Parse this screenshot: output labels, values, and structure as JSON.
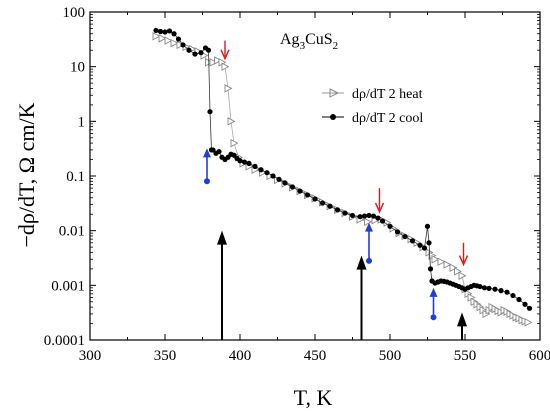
{
  "chart_data": {
    "type": "scatter",
    "title": "",
    "compound_label": {
      "base": "Ag",
      "sub1": "3",
      "mid": "CuS",
      "sub2": "2"
    },
    "xlabel": "T, K",
    "ylabel": "−dρ/dT, Ω cm/K",
    "xlim": [
      300,
      600
    ],
    "ylim": [
      0.0001,
      100
    ],
    "yscale": "log",
    "x_ticks": [
      300,
      350,
      400,
      450,
      500,
      550,
      600
    ],
    "x_tick_labels": [
      "300",
      "350",
      "400",
      "450",
      "500",
      "550",
      "600"
    ],
    "y_ticks": [
      0.0001,
      0.001,
      0.01,
      0.1,
      1,
      10,
      100
    ],
    "y_tick_labels": [
      "0.0001",
      "0.001",
      "0.01",
      "0.1",
      "1",
      "10",
      "100"
    ],
    "grid": false,
    "legend_position": "center-right",
    "series": [
      {
        "name": "dρ/dT 2 heat",
        "marker": "triangle-right-open",
        "color": "#999999",
        "x": [
          344,
          348,
          352,
          356,
          360,
          364,
          368,
          372,
          376,
          379,
          382,
          385,
          388,
          390,
          392,
          394,
          396,
          399,
          402,
          406,
          410,
          415,
          420,
          425,
          430,
          435,
          440,
          445,
          450,
          455,
          460,
          465,
          470,
          475,
          480,
          485,
          490,
          494,
          498,
          502,
          506,
          510,
          514,
          518,
          522,
          526,
          528,
          530,
          534,
          538,
          542,
          545,
          548,
          550,
          552,
          554,
          556,
          558,
          560,
          562,
          564,
          566,
          568,
          570,
          572,
          574,
          576,
          578,
          580,
          582,
          584,
          586,
          588,
          590,
          592
        ],
        "y": [
          36,
          33,
          30,
          27,
          25,
          23,
          21,
          19,
          16,
          12,
          12,
          13,
          12,
          10,
          4,
          1.0,
          0.4,
          0.22,
          0.17,
          0.15,
          0.13,
          0.115,
          0.1,
          0.085,
          0.073,
          0.062,
          0.053,
          0.045,
          0.039,
          0.033,
          0.028,
          0.024,
          0.021,
          0.018,
          0.016,
          0.0145,
          0.0155,
          0.016,
          0.014,
          0.011,
          0.009,
          0.008,
          0.007,
          0.006,
          0.005,
          0.004,
          0.0035,
          0.003,
          0.0027,
          0.0024,
          0.0021,
          0.0018,
          0.0015,
          0.00085,
          0.0007,
          0.0006,
          0.0005,
          0.00045,
          0.0004,
          0.00035,
          0.0003,
          0.00035,
          0.0004,
          0.00037,
          0.00034,
          0.00032,
          0.00035,
          0.00033,
          0.0003,
          0.00028,
          0.00026,
          0.00025,
          0.00023,
          0.00022,
          0.00021
        ]
      },
      {
        "name": "dρ/dT 2 cool",
        "marker": "circle-filled",
        "color": "#000000",
        "x": [
          344,
          347,
          350,
          353,
          356,
          359,
          362,
          366,
          370,
          374,
          377,
          379,
          380,
          381,
          382,
          384,
          386,
          388,
          390,
          392,
          394,
          396,
          398,
          400,
          403,
          406,
          410,
          414,
          418,
          422,
          426,
          430,
          435,
          440,
          445,
          450,
          455,
          460,
          465,
          470,
          475,
          480,
          483,
          486,
          489,
          492,
          495,
          500,
          505,
          510,
          515,
          520,
          523,
          525,
          526,
          527,
          528,
          530,
          532,
          534,
          536,
          538,
          540,
          542,
          544,
          546,
          548,
          550,
          552,
          554,
          556,
          558,
          560,
          563,
          566,
          570,
          574,
          578,
          582,
          586,
          590,
          593
        ],
        "y": [
          46,
          44,
          43,
          45,
          40,
          32,
          25,
          20,
          17,
          18,
          22,
          20,
          1.5,
          0.3,
          0.3,
          0.26,
          0.28,
          0.22,
          0.2,
          0.22,
          0.25,
          0.24,
          0.21,
          0.19,
          0.18,
          0.17,
          0.15,
          0.13,
          0.115,
          0.1,
          0.087,
          0.075,
          0.063,
          0.053,
          0.045,
          0.038,
          0.032,
          0.028,
          0.024,
          0.021,
          0.019,
          0.018,
          0.0185,
          0.019,
          0.0185,
          0.017,
          0.015,
          0.012,
          0.0095,
          0.0078,
          0.0065,
          0.0054,
          0.0048,
          0.012,
          0.006,
          0.002,
          0.0012,
          0.0011,
          0.00115,
          0.0012,
          0.00118,
          0.00115,
          0.0011,
          0.00105,
          0.001,
          0.00095,
          0.0009,
          0.00085,
          0.0009,
          0.00095,
          0.001,
          0.00098,
          0.00095,
          0.0009,
          0.00088,
          0.00085,
          0.0008,
          0.00075,
          0.00065,
          0.00055,
          0.00045,
          0.00038
        ]
      }
    ],
    "annotations": {
      "black_arrows": [
        {
          "x": 388,
          "y_from": 0.0001,
          "y_to": 0.01
        },
        {
          "x": 481,
          "y_from": 0.0001,
          "y_to": 0.0035
        },
        {
          "x": 548,
          "y_from": 0.0001,
          "y_to": 0.00032
        }
      ],
      "blue_arrows": [
        {
          "x": 378,
          "y_dot": 0.08,
          "y_tip": 0.32
        },
        {
          "x": 486,
          "y_dot": 0.0028,
          "y_tip": 0.014
        },
        {
          "x": 529,
          "y_dot": 0.00026,
          "y_tip": 0.0009
        }
      ],
      "red_arrows": [
        {
          "x": 390,
          "y_top": 30,
          "y_tip": 14
        },
        {
          "x": 493,
          "y_top": 0.06,
          "y_tip": 0.022
        },
        {
          "x": 549,
          "y_top": 0.006,
          "y_tip": 0.0024
        }
      ],
      "colors": {
        "black": "#000000",
        "blue": "#1f3fd8",
        "red": "#e01818"
      }
    }
  }
}
